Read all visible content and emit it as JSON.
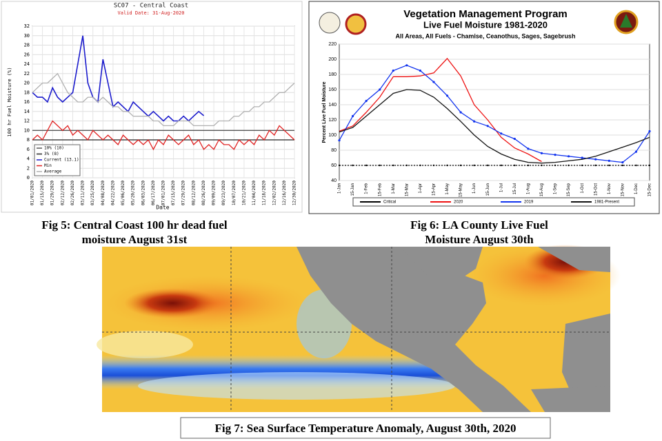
{
  "chart_data": [
    {
      "type": "line",
      "title": "SC07 - Central Coast",
      "subtitle": "Valid Date: 31-Aug-2020",
      "ylabel": "100 hr Fuel Moisture (%)",
      "xlabel": "Date",
      "categories": [
        "01/01/2020",
        null,
        "01/15/2020",
        null,
        "01/29/2020",
        null,
        "02/12/2020",
        null,
        "02/26/2020",
        null,
        "03/11/2020",
        null,
        "03/25/2020",
        null,
        "04/08/2020",
        null,
        "04/22/2020",
        null,
        "05/06/2020",
        null,
        "05/20/2020",
        null,
        "06/03/2020",
        null,
        "06/17/2020",
        null,
        "07/01/2020",
        null,
        "07/15/2020",
        null,
        "07/29/2020",
        null,
        "08/12/2020",
        null,
        "08/26/2020",
        null,
        "09/09/2020",
        null,
        "09/23/2020",
        null,
        "10/07/2020",
        null,
        "10/21/2020",
        null,
        "11/04/2020",
        null,
        "11/18/2020",
        null,
        "12/02/2020",
        null,
        "12/16/2020",
        null,
        "12/30/2020"
      ],
      "series": [
        {
          "name": "10% (10)",
          "color": "#555555",
          "values": [
            10,
            10,
            10,
            10,
            10,
            10,
            10,
            10,
            10,
            10,
            10,
            10,
            10,
            10,
            10,
            10,
            10,
            10,
            10,
            10,
            10,
            10,
            10,
            10,
            10,
            10,
            10,
            10,
            10,
            10,
            10,
            10,
            10,
            10,
            10,
            10,
            10,
            10,
            10,
            10,
            10,
            10,
            10,
            10,
            10,
            10,
            10,
            10,
            10,
            10,
            10,
            10,
            10
          ]
        },
        {
          "name": "3% (8)",
          "color": "#222222",
          "values": [
            8,
            8,
            8,
            8,
            8,
            8,
            8,
            8,
            8,
            8,
            8,
            8,
            8,
            8,
            8,
            8,
            8,
            8,
            8,
            8,
            8,
            8,
            8,
            8,
            8,
            8,
            8,
            8,
            8,
            8,
            8,
            8,
            8,
            8,
            8,
            8,
            8,
            8,
            8,
            8,
            8,
            8,
            8,
            8,
            8,
            8,
            8,
            8,
            8,
            8,
            8,
            8,
            8
          ]
        },
        {
          "name": "Current (13.1)",
          "color": "#1a1acc",
          "values": [
            18,
            17,
            17,
            16,
            19,
            17,
            16,
            17,
            18,
            24,
            30,
            20,
            17,
            16,
            25,
            20,
            15,
            16,
            15,
            14,
            16,
            15,
            14,
            13,
            14,
            13,
            12,
            13,
            12,
            12,
            13,
            12,
            13,
            14,
            13.1,
            null,
            null,
            null,
            null,
            null,
            null,
            null,
            null,
            null,
            null,
            null,
            null,
            null,
            null,
            null,
            null,
            null,
            null
          ]
        },
        {
          "name": "Min",
          "color": "#e02020",
          "values": [
            8,
            9,
            8,
            10,
            12,
            11,
            10,
            11,
            9,
            10,
            9,
            8,
            10,
            9,
            8,
            9,
            8,
            7,
            9,
            8,
            7,
            8,
            7,
            8,
            6,
            8,
            7,
            9,
            8,
            7,
            8,
            9,
            7,
            8,
            6,
            7,
            6,
            8,
            7,
            7,
            6,
            8,
            7,
            8,
            7,
            9,
            8,
            10,
            9,
            11,
            10,
            9,
            8
          ]
        },
        {
          "name": "Average",
          "color": "#b0b0b0",
          "values": [
            18,
            19,
            20,
            20,
            21,
            22,
            20,
            18,
            17,
            16,
            16,
            17,
            17,
            16,
            17,
            16,
            15,
            15,
            14,
            14,
            13,
            13,
            13,
            13,
            12,
            12,
            11,
            11,
            11,
            12,
            12,
            12,
            11,
            11,
            11,
            11,
            11,
            12,
            12,
            12,
            13,
            13,
            14,
            14,
            15,
            15,
            16,
            16,
            17,
            18,
            18,
            19,
            20
          ]
        }
      ],
      "ylim": [
        0,
        32
      ],
      "yticks": [
        0,
        2,
        4,
        6,
        8,
        10,
        12,
        14,
        16,
        18,
        20,
        22,
        24,
        26,
        28,
        30,
        32
      ],
      "grid": true,
      "legend": "bottom-left"
    },
    {
      "type": "line",
      "title": "Vegetation Management Program",
      "subtitle": "Live Fuel Moisture 1981-2020",
      "description": "All Areas, All Fuels - Chamise, Ceanothus, Sages, Sagebrush",
      "ylabel": "Percent Live Fuel Moisture",
      "categories": [
        "1-Jan",
        "15-Jan",
        "1-Feb",
        "15-Feb",
        "1-Mar",
        "15-Mar",
        "1-Apr",
        "15-Apr",
        "1-May",
        "15-May",
        "1-Jun",
        "15-Jun",
        "1-Jul",
        "15-Jul",
        "1-Aug",
        "15-Aug",
        "1-Sep",
        "15-Sep",
        "1-Oct",
        "15-Oct",
        "1-Nov",
        "15-Nov",
        "1-Dec",
        "15-Dec"
      ],
      "series": [
        {
          "name": "Critical",
          "color": "#000000",
          "values": [
            60,
            60,
            60,
            60,
            60,
            60,
            60,
            60,
            60,
            60,
            60,
            60,
            60,
            60,
            60,
            60,
            60,
            60,
            60,
            60,
            60,
            60,
            60,
            60
          ]
        },
        {
          "name": "2020",
          "color": "#ee1111",
          "values": [
            105,
            112,
            130,
            150,
            177,
            177,
            178,
            182,
            201,
            178,
            140,
            120,
            97,
            83,
            75,
            65,
            null,
            null,
            null,
            null,
            null,
            null,
            null,
            null
          ]
        },
        {
          "name": "2019",
          "color": "#1133ee",
          "values": [
            93,
            125,
            145,
            160,
            185,
            192,
            185,
            170,
            152,
            130,
            118,
            112,
            102,
            95,
            82,
            76,
            74,
            72,
            70,
            68,
            66,
            64,
            78,
            105
          ]
        },
        {
          "name": "1981-Present",
          "color": "#111111",
          "values": [
            104,
            110,
            125,
            140,
            155,
            160,
            159,
            150,
            135,
            118,
            100,
            85,
            75,
            68,
            64,
            63,
            64,
            66,
            68,
            72,
            78,
            84,
            90,
            97
          ]
        }
      ],
      "ylim": [
        40,
        220
      ],
      "yticks": [
        40,
        60,
        80,
        100,
        120,
        140,
        160,
        180,
        200,
        220
      ],
      "grid": true,
      "legend": "bottom"
    }
  ],
  "captions": [
    "Fig 5: Central Coast 100 hr dead fuel moisture August 31st",
    "Fig 6: LA County Live Fuel Moisture August 30th",
    "Fig 7: Sea Surface Temperature Anomaly, August 30th, 2020"
  ]
}
